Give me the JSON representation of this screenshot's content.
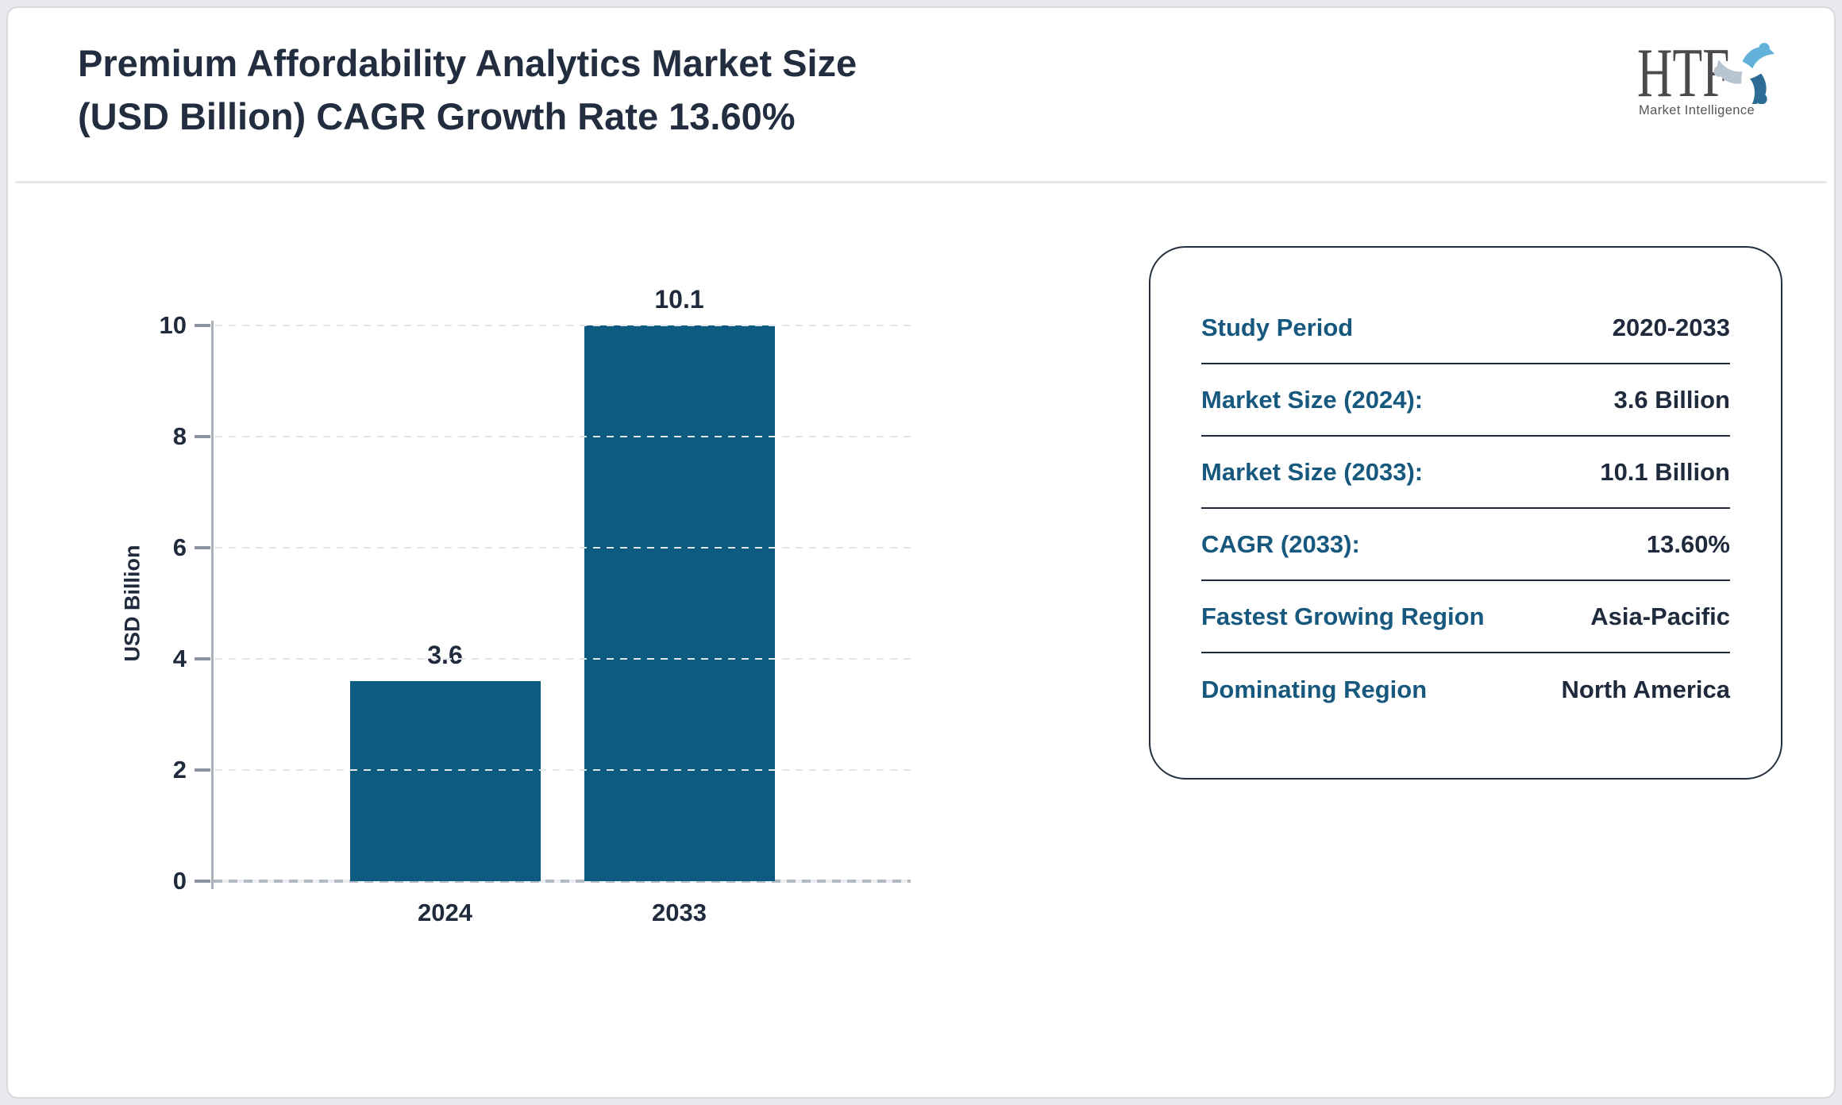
{
  "header": {
    "title_lines": [
      "Premium Affordability Analytics Market Size",
      "(USD Billion) CAGR Growth Rate 13.60%"
    ],
    "logo": {
      "text": "HTF",
      "subtitle": "Market Intelligence"
    }
  },
  "chart_data": {
    "type": "bar",
    "categories": [
      "2024",
      "2033"
    ],
    "values": [
      3.6,
      10.1
    ],
    "value_labels": [
      "3.6",
      "10.1"
    ],
    "ylabel": "USD Billion",
    "ylim": [
      0,
      10
    ],
    "yticks": [
      0,
      2,
      4,
      6,
      8,
      10
    ],
    "grid": "horizontal-dashed",
    "legend": "none",
    "bar_color": "#0d5b80"
  },
  "info_panel": {
    "rows": [
      {
        "label": "Study Period",
        "value": "2020-2033"
      },
      {
        "label": "Market Size (2024):",
        "value": "3.6 Billion"
      },
      {
        "label": "Market Size (2033):",
        "value": "10.1 Billion"
      },
      {
        "label": "CAGR (2033):",
        "value": "13.60%"
      },
      {
        "label": "Fastest Growing Region",
        "value": "Asia-Pacific"
      },
      {
        "label": "Dominating Region",
        "value": "North America"
      }
    ]
  },
  "colors": {
    "accent_teal": "#17587e",
    "dark_navy": "#1f2b3c",
    "bar": "#0d5b80",
    "page_background": "#e8e9ed",
    "logo_light_blue": "#62b2d9",
    "logo_gray_blue": "#b8c5d0",
    "logo_dark_blue": "#2d6d95"
  }
}
